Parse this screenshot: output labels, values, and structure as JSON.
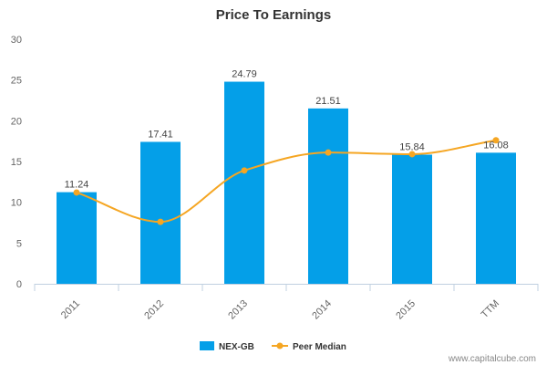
{
  "chart_data": {
    "type": "bar",
    "title": "Price To Earnings",
    "categories": [
      "2011",
      "2012",
      "2013",
      "2014",
      "2015",
      "TTM"
    ],
    "ylim": [
      0,
      30
    ],
    "yticks": [
      0,
      5,
      10,
      15,
      20,
      25,
      30
    ],
    "grid": false,
    "legend_position": "bottom",
    "series": [
      {
        "name": "NEX-GB",
        "type": "bar",
        "color": "#049FE8",
        "values": [
          11.24,
          17.41,
          24.79,
          21.51,
          15.84,
          16.08
        ],
        "labels": [
          "11.24",
          "17.41",
          "24.79",
          "21.51",
          "15.84",
          "16.08"
        ]
      },
      {
        "name": "Peer Median",
        "type": "line",
        "color": "#F5A623",
        "values": [
          11.2,
          7.6,
          13.9,
          16.1,
          15.9,
          17.6
        ]
      }
    ]
  },
  "watermark": "www.capitalcube.com"
}
